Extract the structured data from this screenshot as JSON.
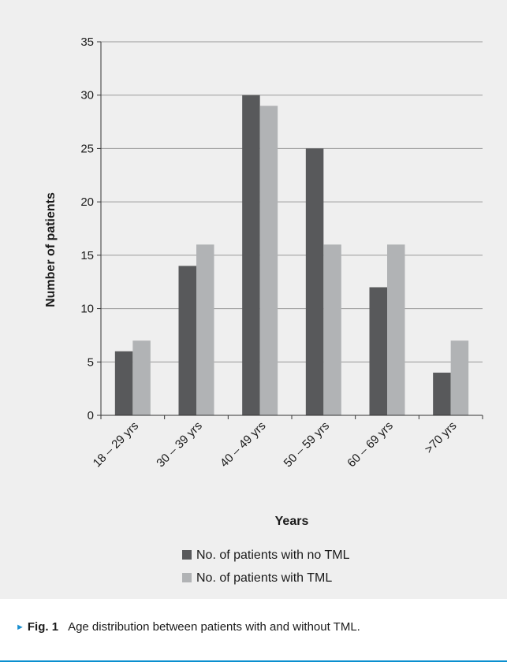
{
  "chart_data": {
    "type": "bar",
    "categories": [
      "18 – 29 yrs",
      "30 – 39 yrs",
      "40 – 49 yrs",
      "50 – 59 yrs",
      "60 – 69 yrs",
      ">70 yrs"
    ],
    "series": [
      {
        "name": "No. of patients with no TML",
        "values": [
          6,
          14,
          30,
          25,
          12,
          4
        ],
        "color": "#58595b"
      },
      {
        "name": "No. of patients with TML",
        "values": [
          7,
          16,
          29,
          16,
          16,
          7
        ],
        "color": "#b1b3b5"
      }
    ],
    "xlabel": "Years",
    "ylabel": "Number of patients",
    "ylim": [
      0,
      35
    ],
    "yticks": [
      0,
      5,
      10,
      15,
      20,
      25,
      30,
      35
    ],
    "grid": true,
    "legend_position": "bottom"
  },
  "caption": {
    "arrow": "►",
    "label": "Fig. 1",
    "text": "Age distribution between patients with and without TML."
  },
  "colors": {
    "panel_background": "#efefef",
    "gridline": "#9a9a9a",
    "caption_accent": "#0a8fcf"
  }
}
